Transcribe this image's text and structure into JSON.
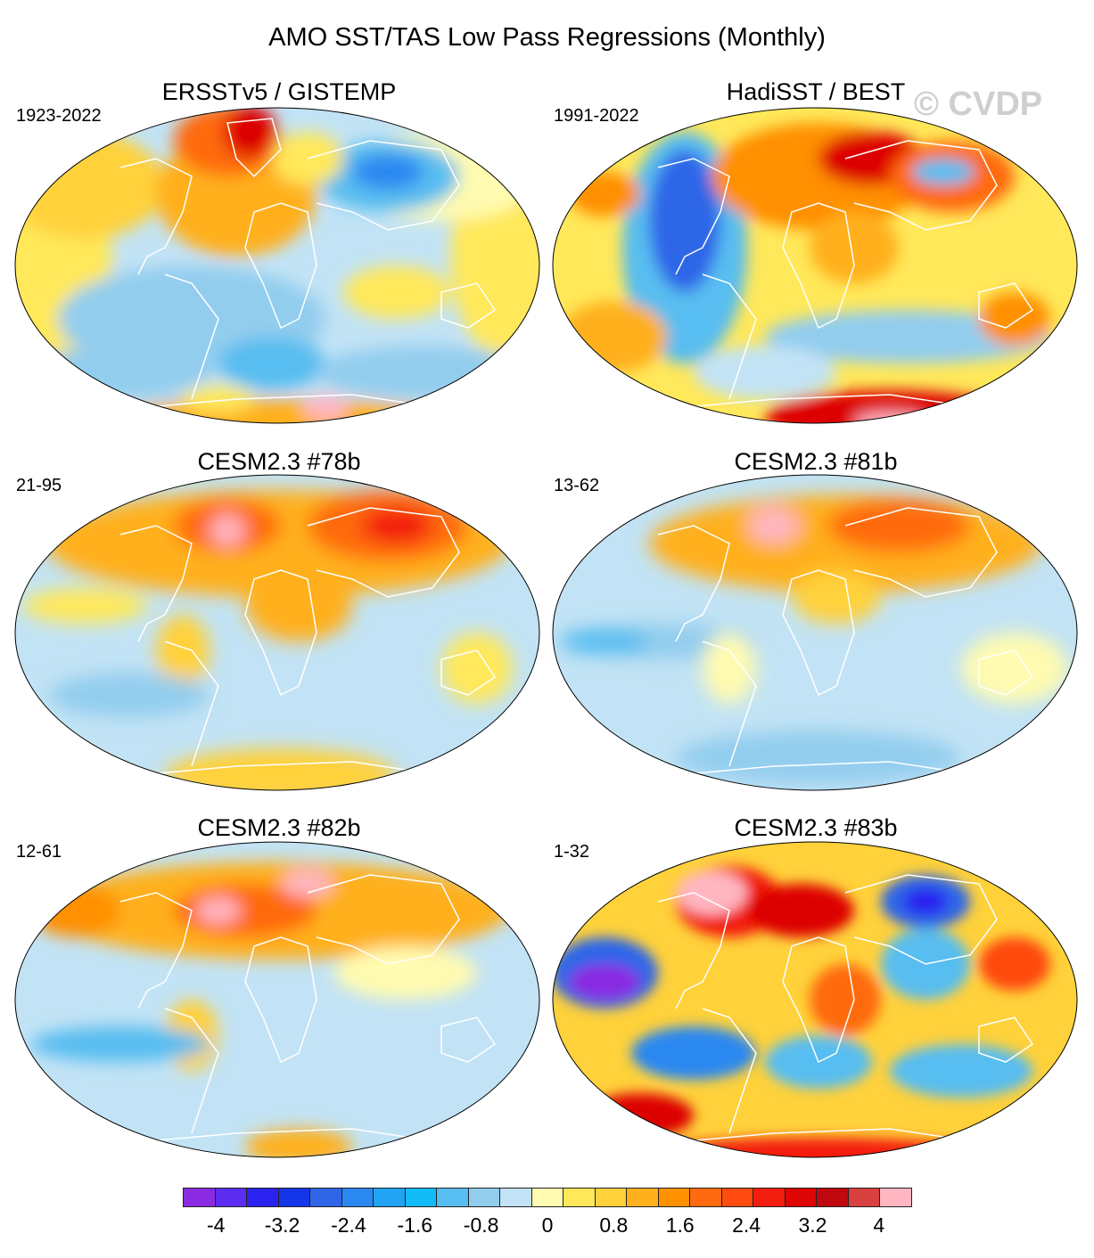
{
  "figure_title": "AMO SST/TAS Low Pass Regressions (Monthly)",
  "watermark": "© CVDP",
  "panels": [
    {
      "title": "ERSSTv5 / GISTEMP",
      "period": "1923-2022"
    },
    {
      "title": "HadiSST / BEST",
      "period": "1991-2022"
    },
    {
      "title": "CESM2.3 #78b",
      "period": "21-95"
    },
    {
      "title": "CESM2.3 #81b",
      "period": "13-62"
    },
    {
      "title": "CESM2.3 #82b",
      "period": "12-61"
    },
    {
      "title": "CESM2.3 #83b",
      "period": "1-32"
    }
  ],
  "colorbar": {
    "min": -4.4,
    "max": 4.4,
    "step": 0.4,
    "tick_labels": [
      "-4",
      "-3.2",
      "-2.4",
      "-1.6",
      "-0.8",
      "0",
      "0.8",
      "1.6",
      "2.4",
      "3.2",
      "4"
    ],
    "tick_values": [
      -4,
      -3.2,
      -2.4,
      -1.6,
      -0.8,
      0,
      0.8,
      1.6,
      2.4,
      3.2,
      4
    ],
    "colors": [
      "#8a2be2",
      "#5a2df0",
      "#2b22f0",
      "#1536e8",
      "#2f66e8",
      "#2b88f0",
      "#1fa3f2",
      "#11bbf5",
      "#58bdf0",
      "#93cdee",
      "#c2e3f5",
      "#fffbb0",
      "#ffe85a",
      "#ffd13a",
      "#ffb01c",
      "#ff9000",
      "#ff6a10",
      "#ff4a10",
      "#f31d10",
      "#dd0505",
      "#c00810",
      "#d94040",
      "#ffb6c1"
    ]
  }
}
